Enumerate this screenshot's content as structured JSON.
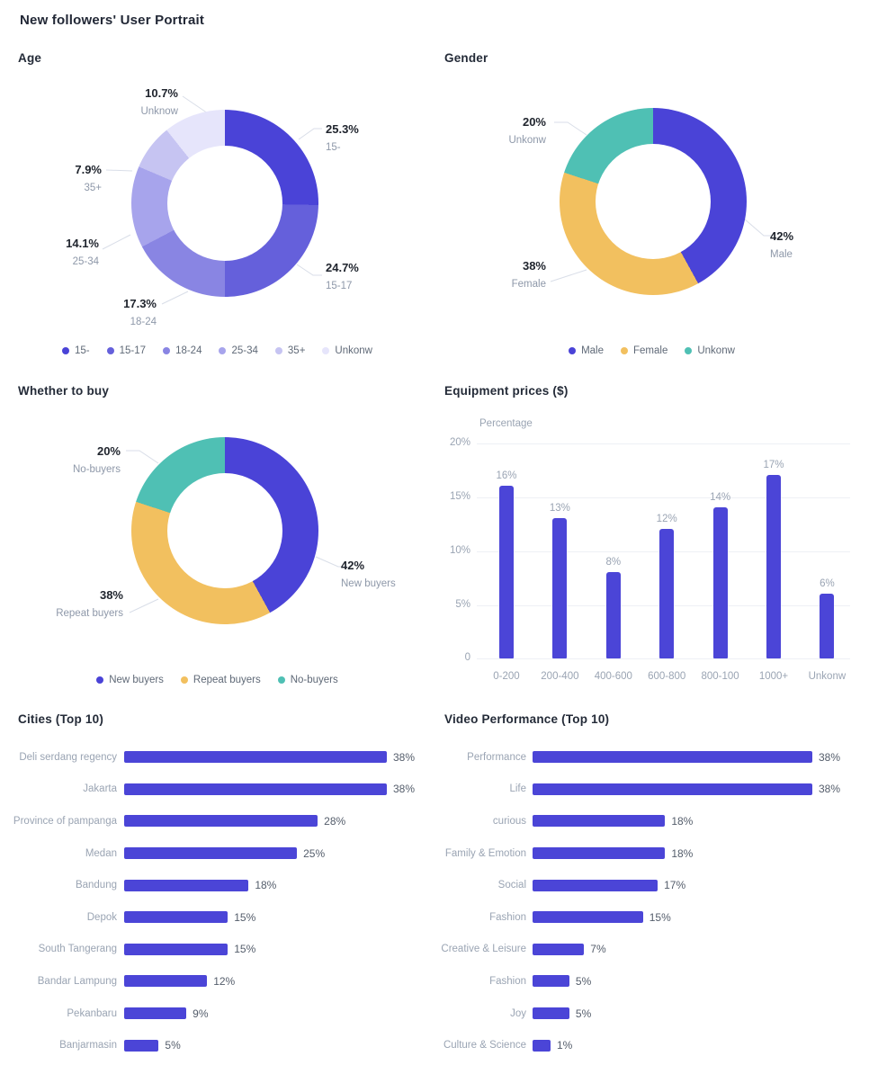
{
  "page": {
    "title": "New followers' User Portrait"
  },
  "chart_data": [
    {
      "id": "age",
      "type": "pie",
      "title": "Age",
      "slices": [
        {
          "label": "15-",
          "pct": "25.3%",
          "value": 25.3,
          "color": "#4a43d7"
        },
        {
          "label": "15-17",
          "pct": "24.7%",
          "value": 24.7,
          "color": "#6560db"
        },
        {
          "label": "18-24",
          "pct": "17.3%",
          "value": 17.3,
          "color": "#8985e3"
        },
        {
          "label": "25-34",
          "pct": "14.1%",
          "value": 14.1,
          "color": "#a7a4ec"
        },
        {
          "label": "35+",
          "pct": "7.9%",
          "value": 7.9,
          "color": "#c6c4f2"
        },
        {
          "label": "Unknow",
          "pct": "10.7%",
          "value": 10.7,
          "color": "#e6e5fb"
        }
      ],
      "legend": [
        {
          "label": "15-",
          "color": "#4a43d7"
        },
        {
          "label": "15-17",
          "color": "#6560db"
        },
        {
          "label": "18-24",
          "color": "#8985e3"
        },
        {
          "label": "25-34",
          "color": "#a7a4ec"
        },
        {
          "label": "35+",
          "color": "#c6c4f2"
        },
        {
          "label": "Unkonw",
          "color": "#e6e5fb"
        }
      ]
    },
    {
      "id": "gender",
      "type": "pie",
      "title": "Gender",
      "slices": [
        {
          "label": "Male",
          "pct": "42%",
          "value": 42,
          "color": "#4a43d7"
        },
        {
          "label": "Female",
          "pct": "38%",
          "value": 38,
          "color": "#f2c05f"
        },
        {
          "label": "Unkonw",
          "pct": "20%",
          "value": 20,
          "color": "#4fc0b4"
        }
      ],
      "legend": [
        {
          "label": "Male",
          "color": "#4a43d7"
        },
        {
          "label": "Female",
          "color": "#f2c05f"
        },
        {
          "label": "Unkonw",
          "color": "#4fc0b4"
        }
      ]
    },
    {
      "id": "buy",
      "type": "pie",
      "title": "Whether to buy",
      "slices": [
        {
          "label": "New buyers",
          "pct": "42%",
          "value": 42,
          "color": "#4a43d7"
        },
        {
          "label": "Repeat buyers",
          "pct": "38%",
          "value": 38,
          "color": "#f2c05f"
        },
        {
          "label": "No-buyers",
          "pct": "20%",
          "value": 20,
          "color": "#4fc0b4"
        }
      ],
      "legend": [
        {
          "label": "New buyers",
          "color": "#4a43d7"
        },
        {
          "label": "Repeat buyers",
          "color": "#f2c05f"
        },
        {
          "label": "No-buyers",
          "color": "#4fc0b4"
        }
      ]
    },
    {
      "id": "equipment",
      "type": "bar",
      "title": "Equipment prices ($)",
      "ylabel": "Percentage",
      "ymax": 20,
      "yticks": [
        "20%",
        "15%",
        "10%",
        "5%",
        "0"
      ],
      "categories": [
        "0-200",
        "200-400",
        "400-600",
        "600-800",
        "800-100",
        "1000+",
        "Unkonw"
      ],
      "values": [
        16,
        13,
        8,
        12,
        14,
        17,
        6
      ],
      "value_labels": [
        "16%",
        "13%",
        "8%",
        "12%",
        "14%",
        "17%",
        "6%"
      ]
    },
    {
      "id": "cities",
      "type": "hbar",
      "title": "Cities (Top 10)",
      "categories": [
        "Deli serdang regency",
        "Jakarta",
        "Province of pampanga",
        "Medan",
        "Bandung",
        "Depok",
        "South Tangerang",
        "Bandar Lampung",
        "Pekanbaru",
        "Banjarmasin"
      ],
      "values": [
        38,
        38,
        28,
        25,
        18,
        15,
        15,
        12,
        9,
        5
      ],
      "value_labels": [
        "38%",
        "38%",
        "28%",
        "25%",
        "18%",
        "15%",
        "15%",
        "12%",
        "9%",
        "5%"
      ]
    },
    {
      "id": "video",
      "type": "hbar",
      "title": "Video Performance (Top 10)",
      "categories": [
        "Performance",
        "Life",
        "curious",
        "Family & Emotion",
        "Social",
        "Fashion",
        "Creative & Leisure",
        "Fashion",
        "Joy",
        "Culture & Science"
      ],
      "values": [
        38,
        38,
        18,
        18,
        17,
        15,
        7,
        5,
        5,
        1
      ],
      "value_labels": [
        "38%",
        "38%",
        "18%",
        "18%",
        "17%",
        "15%",
        "7%",
        "5%",
        "5%",
        "1%"
      ]
    }
  ],
  "colors": {
    "primary_indigo": "#4b45d7",
    "yellow": "#f2c05f",
    "teal": "#4fc0b4",
    "grid": "#eef0f5",
    "callout_line": "#d9dee8"
  }
}
